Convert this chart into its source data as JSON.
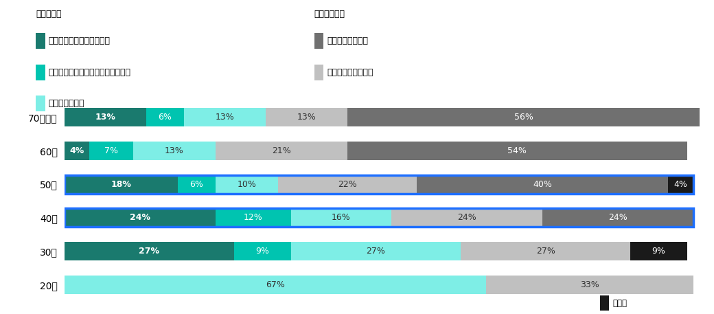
{
  "categories": [
    "70代以上",
    "60代",
    "50代",
    "40代",
    "30代",
    "20代"
  ],
  "series": {
    "導入し、運用開始している": [
      13,
      4,
      18,
      24,
      27,
      0
    ],
    "導入しているが、運用開始前である": [
      6,
      7,
      6,
      12,
      9,
      0
    ],
    "導入待ちである": [
      13,
      13,
      10,
      16,
      27,
      67
    ],
    "導入を検討している": [
      13,
      21,
      22,
      24,
      27,
      33
    ],
    "導入する気が無い": [
      56,
      54,
      40,
      24,
      0,
      0
    ],
    "その他": [
      0,
      0,
      4,
      0,
      9,
      0
    ]
  },
  "colors": {
    "導入し、運用開始している": "#1a7a6e",
    "導入しているが、運用開始前である": "#00c4b0",
    "導入待ちである": "#7eeee6",
    "導入を検討している": "#c0c0c0",
    "導入する気が無い": "#707070",
    "その他": "#1a1a1a"
  },
  "highlight_cats": [
    "50代",
    "40代"
  ],
  "border_color": "#1e6fff",
  "legend_left_title": "＜導入層＞",
  "legend_right_title": "＜未導入層＞",
  "legend_left_items": [
    "導入し、運用開始している",
    "導入しているが、運用開始前である",
    "導入待ちである"
  ],
  "legend_right_items": [
    "導入する気が無い",
    "導入を検討している"
  ],
  "footer_item": "その他",
  "bar_height": 0.55,
  "figsize": [
    10.4,
    4.57
  ],
  "dpi": 100,
  "font_size_label": 10,
  "font_size_bar": 9,
  "font_size_legend": 9,
  "background_color": "#ffffff"
}
